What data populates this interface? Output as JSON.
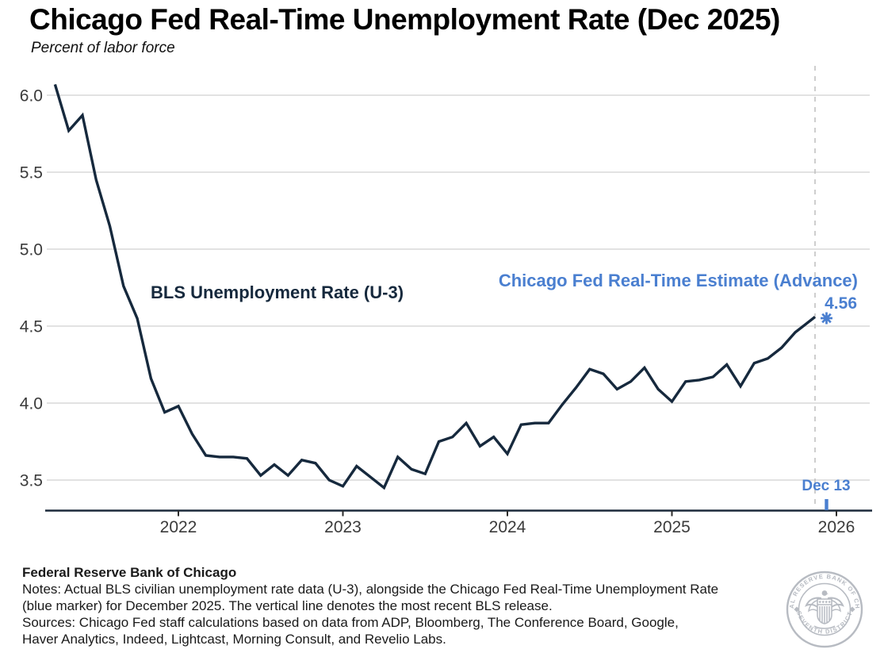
{
  "page": {
    "title": "Chicago Fed Real-Time Unemployment Rate (Dec 2025)",
    "subtitle": "Percent of labor force"
  },
  "chart_data": {
    "type": "line",
    "title": "Chicago Fed Real-Time Unemployment Rate (Dec 2025)",
    "subtitle": "Percent of labor force",
    "ylabel": "Percent of labor force",
    "ylim": [
      3.3,
      6.15
    ],
    "yticks": [
      3.5,
      4.0,
      4.5,
      5.0,
      5.5,
      6.0
    ],
    "xticks": [
      "2022",
      "2023",
      "2024",
      "2025",
      "2026"
    ],
    "grid": "horizontal-only",
    "legend_position": "direct-labels",
    "series": [
      {
        "name": "BLS Unemployment Rate (U-3)",
        "frequency": "monthly",
        "start_month": "2021-04",
        "end_month": "2025-11",
        "values": [
          6.07,
          5.77,
          5.87,
          5.45,
          5.15,
          4.76,
          4.55,
          4.16,
          3.94,
          3.98,
          3.8,
          3.66,
          3.65,
          3.65,
          3.64,
          3.53,
          3.6,
          3.53,
          3.63,
          3.61,
          3.5,
          3.46,
          3.59,
          3.52,
          3.45,
          3.65,
          3.57,
          3.54,
          3.75,
          3.78,
          3.87,
          3.72,
          3.78,
          3.67,
          3.86,
          3.87,
          3.87,
          3.99,
          4.1,
          4.22,
          4.19,
          4.09,
          4.14,
          4.23,
          4.09,
          4.01,
          4.14,
          4.15,
          4.17,
          4.25,
          4.11,
          4.26,
          4.29,
          4.36,
          4.46,
          4.55
        ]
      }
    ],
    "point_marker": {
      "name": "Chicago Fed Real-Time Estimate (Advance)",
      "month": "2025-12",
      "value": 4.56,
      "value_label": "4.56",
      "shape": "asterisk"
    },
    "vline": {
      "label": "Dec 13",
      "style": "dashed"
    }
  },
  "annotations": {
    "bls_label": "BLS Unemployment Rate (U-3)",
    "cf_label": "Chicago Fed Real-Time Estimate (Advance)",
    "cf_value": "4.56",
    "vline_label": "Dec 13"
  },
  "footer": {
    "org": "Federal Reserve Bank of Chicago",
    "notes_line1": "Notes: Actual BLS civilian unemployment rate data (U-3), alongside the Chicago Fed Real-Time Unemployment Rate",
    "notes_line2": "(blue marker) for December 2025. The vertical line denotes the most recent BLS release.",
    "sources_line1": "Sources: Chicago Fed staff calculations based on data from ADP, Bloomberg, The Conference Board, Google,",
    "sources_line2": "Haver Analytics, Indeed, Lightcast, Morning Consult, and Revelio Labs."
  },
  "seal": {
    "ring_text_top": "FEDERAL RESERVE BANK OF CHICAGO",
    "ring_text_bottom": "SEVENTH DISTRICT"
  },
  "colors": {
    "line": "#16293d",
    "accent_blue": "#4a7fd0",
    "grid": "#d9d9d9",
    "axis": "#1b2a3b",
    "dashed": "#c5c5c5",
    "tick_text": "#3b3b3b",
    "seal": "#b7bbc2"
  }
}
